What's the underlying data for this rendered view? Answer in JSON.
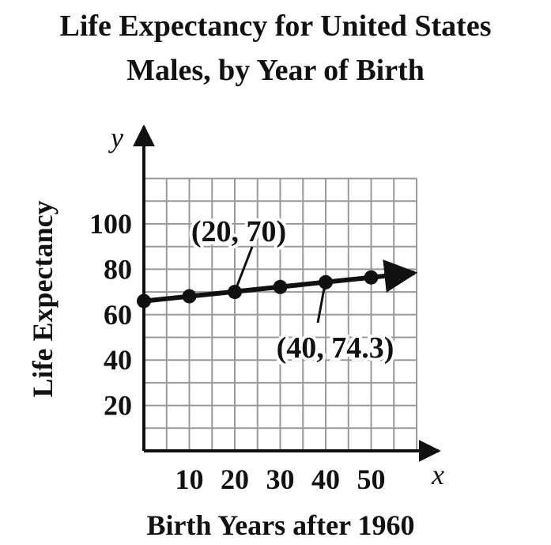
{
  "chart_data": {
    "type": "line",
    "title": "Life Expectancy for United States",
    "subtitle": "Males, by Year of Birth",
    "xlabel": "Birth Years after 1960",
    "ylabel": "Life Expectancy",
    "x_var": "x",
    "y_var": "y",
    "xlim": [
      0,
      60
    ],
    "ylim": [
      0,
      120
    ],
    "xticks": [
      10,
      20,
      30,
      40,
      50
    ],
    "yticks": [
      20,
      40,
      60,
      80,
      100
    ],
    "grid": true,
    "grid_step_x": 5,
    "grid_step_y": 10,
    "line_color": "#111111",
    "grid_color": "#999999",
    "series": [
      {
        "x": [
          0,
          10,
          20,
          30,
          40,
          50
        ],
        "y": [
          66.0,
          68.1,
          70.0,
          72.2,
          74.3,
          76.4
        ]
      }
    ],
    "annotations": [
      {
        "text": "(20, 70)",
        "x": 20,
        "y": 70
      },
      {
        "text": "(40, 74.3)",
        "x": 40,
        "y": 74.3
      }
    ]
  }
}
